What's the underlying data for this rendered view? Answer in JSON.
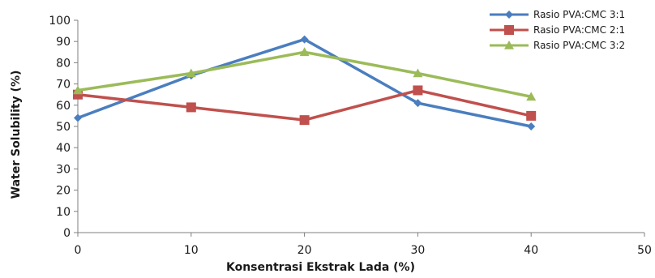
{
  "chart_data": {
    "type": "line",
    "xlabel": "Konsentrasi Ekstrak Lada (%)",
    "ylabel": "Water Solubility (%)",
    "xlim": [
      0,
      50
    ],
    "ylim": [
      0,
      100
    ],
    "x_ticks": [
      0,
      10,
      20,
      30,
      40,
      50
    ],
    "y_ticks": [
      0,
      10,
      20,
      30,
      40,
      50,
      60,
      70,
      80,
      90,
      100
    ],
    "grid": false,
    "legend_position": "top-right",
    "series": [
      {
        "name": "Rasio PVA:CMC 3:1",
        "color": "#4a7ebf",
        "marker": "diamond",
        "x": [
          0,
          10,
          20,
          30,
          40
        ],
        "values": [
          54,
          74,
          91,
          61,
          50
        ]
      },
      {
        "name": "Rasio PVA:CMC 2:1",
        "color": "#c0504d",
        "marker": "square",
        "x": [
          0,
          10,
          20,
          30,
          40
        ],
        "values": [
          65,
          59,
          53,
          67,
          55
        ]
      },
      {
        "name": "Rasio PVA:CMC 3:2",
        "color": "#9bbb59",
        "marker": "triangle",
        "x": [
          0,
          10,
          20,
          30,
          40
        ],
        "values": [
          67,
          75,
          85,
          75,
          64
        ]
      }
    ]
  }
}
